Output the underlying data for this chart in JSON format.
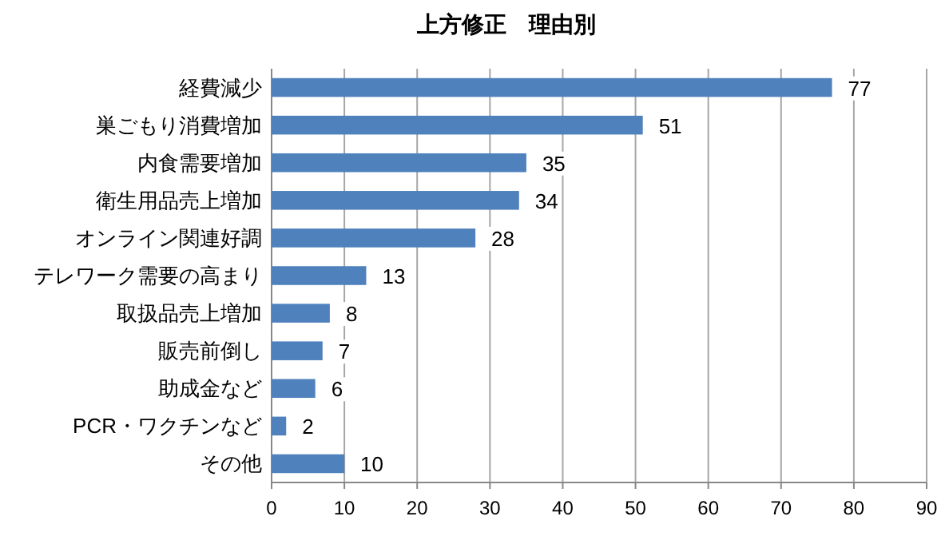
{
  "chart_data": {
    "type": "bar",
    "orientation": "horizontal",
    "title": "上方修正　理由別",
    "categories": [
      "経費減少",
      "巣ごもり消費増加",
      "内食需要増加",
      "衛生用品売上増加",
      "オンライン関連好調",
      "テレワーク需要の高まり",
      "取扱品売上増加",
      "販売前倒し",
      "助成金など",
      "PCR・ワクチンなど",
      "その他"
    ],
    "values": [
      77,
      51,
      35,
      34,
      28,
      13,
      8,
      7,
      6,
      2,
      10
    ],
    "color": "#4f81bd",
    "xlim": [
      0,
      90
    ],
    "xticks": [
      0,
      10,
      20,
      30,
      40,
      50,
      60,
      70,
      80,
      90
    ],
    "grid": "x",
    "data_labels": true
  }
}
